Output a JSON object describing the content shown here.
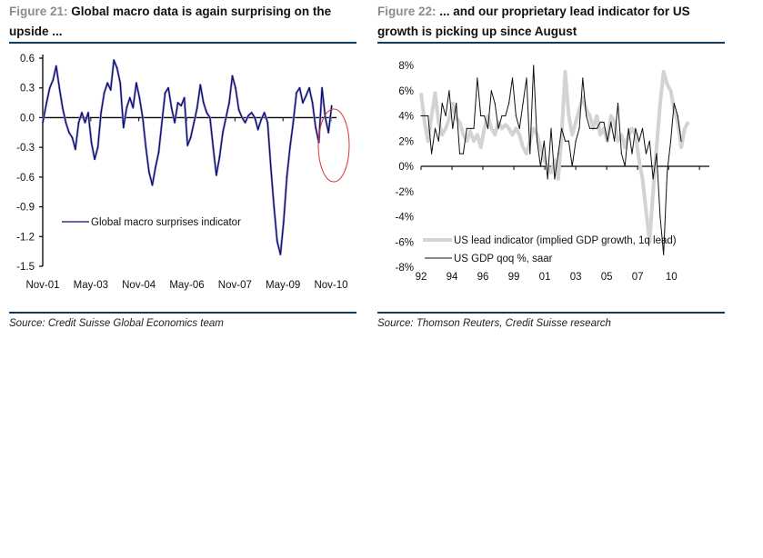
{
  "figures": [
    {
      "label": "Figure 21:",
      "title": "Global macro data is again surprising on the upside ...",
      "source": "Source: Credit Suisse Global Economics team"
    },
    {
      "label": "Figure 22:",
      "title": "... and our proprietary lead indicator for US growth is picking up since August",
      "source": "Source: Thomson Reuters, Credit Suisse research"
    }
  ],
  "colors": {
    "rule": "#123a5c",
    "macro_line": "#0a0a78",
    "macro_shade": "#a8a8c8",
    "highlight_circle": "#e03030",
    "lead_line": "#d3d3d3",
    "gdp_line": "#111111",
    "figure_label": "#8c8c8c"
  },
  "chart_data": [
    {
      "type": "line",
      "title": "Global macro data is again surprising on the upside ...",
      "xlabel": "",
      "ylabel": "",
      "ylim": [
        -1.5,
        0.6
      ],
      "yticks": [
        0.6,
        0.3,
        0.0,
        -0.3,
        -0.6,
        -0.9,
        -1.2,
        -1.5
      ],
      "ytick_labels": [
        "0.6",
        "0.3",
        "0.0",
        "-0.3",
        "-0.6",
        "-0.9",
        "-1.2",
        "-1.5"
      ],
      "xlim": [
        2001.83,
        2011.0
      ],
      "xticks": [
        2001.83,
        2003.33,
        2004.83,
        2006.33,
        2007.83,
        2009.33,
        2010.83
      ],
      "xtick_labels": [
        "Nov-01",
        "May-03",
        "Nov-04",
        "May-06",
        "Nov-07",
        "May-09",
        "Nov-10"
      ],
      "grid": false,
      "legend": {
        "placement": "center-left",
        "entries": [
          "Global macro surprises indicator"
        ]
      },
      "annotation": "red circle highlighting latest readings (late 2010)",
      "series": [
        {
          "name": "Global macro surprises indicator",
          "x": [
            2001.83,
            2001.95,
            2002.05,
            2002.15,
            2002.25,
            2002.35,
            2002.45,
            2002.55,
            2002.65,
            2002.75,
            2002.85,
            2002.95,
            2003.05,
            2003.15,
            2003.25,
            2003.35,
            2003.45,
            2003.55,
            2003.65,
            2003.75,
            2003.85,
            2003.95,
            2004.05,
            2004.15,
            2004.25,
            2004.35,
            2004.45,
            2004.55,
            2004.65,
            2004.75,
            2004.85,
            2004.95,
            2005.05,
            2005.15,
            2005.25,
            2005.35,
            2005.45,
            2005.55,
            2005.65,
            2005.75,
            2005.85,
            2005.95,
            2006.05,
            2006.15,
            2006.25,
            2006.35,
            2006.45,
            2006.55,
            2006.65,
            2006.75,
            2006.85,
            2006.95,
            2007.05,
            2007.15,
            2007.25,
            2007.35,
            2007.45,
            2007.55,
            2007.65,
            2007.75,
            2007.85,
            2007.95,
            2008.05,
            2008.15,
            2008.25,
            2008.35,
            2008.45,
            2008.55,
            2008.65,
            2008.75,
            2008.85,
            2008.95,
            2009.05,
            2009.15,
            2009.25,
            2009.35,
            2009.45,
            2009.55,
            2009.65,
            2009.75,
            2009.85,
            2009.95,
            2010.05,
            2010.15,
            2010.25,
            2010.35,
            2010.45,
            2010.55,
            2010.65,
            2010.75,
            2010.85
          ],
          "values": [
            -0.05,
            0.15,
            0.3,
            0.38,
            0.52,
            0.3,
            0.1,
            -0.05,
            -0.15,
            -0.2,
            -0.32,
            -0.05,
            0.05,
            -0.05,
            0.05,
            -0.25,
            -0.42,
            -0.3,
            0.05,
            0.25,
            0.35,
            0.28,
            0.58,
            0.5,
            0.35,
            -0.1,
            0.1,
            0.2,
            0.1,
            0.35,
            0.2,
            0.0,
            -0.3,
            -0.55,
            -0.68,
            -0.5,
            -0.35,
            -0.05,
            0.25,
            0.3,
            0.1,
            -0.05,
            0.15,
            0.12,
            0.2,
            -0.28,
            -0.2,
            -0.05,
            0.1,
            0.33,
            0.15,
            0.05,
            0.0,
            -0.3,
            -0.58,
            -0.4,
            -0.15,
            0.0,
            0.15,
            0.42,
            0.3,
            0.08,
            0.0,
            -0.05,
            0.02,
            0.05,
            0.0,
            -0.12,
            -0.02,
            0.05,
            -0.05,
            -0.5,
            -0.9,
            -1.25,
            -1.38,
            -1.05,
            -0.6,
            -0.3,
            -0.05,
            0.25,
            0.3,
            0.15,
            0.22,
            0.3,
            0.15,
            -0.1,
            -0.25,
            0.3,
            0.0,
            -0.15,
            0.12
          ]
        }
      ]
    },
    {
      "type": "line",
      "title": "... and our proprietary lead indicator for US growth is picking up since August",
      "xlabel": "",
      "ylabel": "",
      "ylim": [
        -8,
        8
      ],
      "yticks": [
        8,
        6,
        4,
        2,
        0,
        -2,
        -4,
        -6,
        -8
      ],
      "ytick_labels": [
        "8%",
        "6%",
        "4%",
        "2%",
        "0%",
        "-2%",
        "-4%",
        "-6%",
        "-8%"
      ],
      "xlim": [
        1992.0,
        2012.5
      ],
      "xtick_labels": [
        "92",
        "94",
        "96",
        "99",
        "01",
        "03",
        "05",
        "07",
        "10"
      ],
      "grid": false,
      "legend": {
        "placement": "bottom-left",
        "entries": [
          "US lead indicator (implied GDP growth, 1q lead)",
          "US GDP qoq %, saar"
        ]
      },
      "series": [
        {
          "name": "US lead indicator (implied GDP growth, 1q lead)",
          "x": [
            1992.0,
            1992.25,
            1992.5,
            1992.75,
            1993.0,
            1993.25,
            1993.5,
            1993.75,
            1994.0,
            1994.25,
            1994.5,
            1994.75,
            1995.0,
            1995.25,
            1995.5,
            1995.75,
            1996.0,
            1996.25,
            1996.5,
            1996.75,
            1997.0,
            1997.25,
            1997.5,
            1997.75,
            1998.0,
            1998.25,
            1998.5,
            1998.75,
            1999.0,
            1999.25,
            1999.5,
            1999.75,
            2000.0,
            2000.25,
            2000.5,
            2000.75,
            2001.0,
            2001.25,
            2001.5,
            2001.75,
            2002.0,
            2002.25,
            2002.5,
            2002.75,
            2003.0,
            2003.25,
            2003.5,
            2003.75,
            2004.0,
            2004.25,
            2004.5,
            2004.75,
            2005.0,
            2005.25,
            2005.5,
            2005.75,
            2006.0,
            2006.25,
            2006.5,
            2006.75,
            2007.0,
            2007.25,
            2007.5,
            2007.75,
            2008.0,
            2008.25,
            2008.5,
            2008.75,
            2009.0,
            2009.25,
            2009.5,
            2009.75,
            2010.0,
            2010.25,
            2010.5,
            2010.75,
            2011.0
          ],
          "values": [
            5.8,
            3.5,
            2.0,
            4.0,
            5.8,
            3.5,
            2.5,
            3.0,
            3.8,
            5.0,
            3.8,
            3.5,
            2.5,
            2.0,
            2.8,
            2.0,
            2.5,
            1.5,
            3.0,
            4.0,
            3.0,
            2.5,
            3.5,
            3.0,
            3.3,
            3.0,
            2.5,
            3.0,
            2.5,
            1.5,
            1.0,
            2.0,
            3.0,
            2.5,
            1.5,
            0.5,
            0.0,
            -0.5,
            0.5,
            -1.0,
            2.5,
            7.5,
            4.0,
            2.5,
            3.5,
            4.5,
            5.5,
            4.5,
            4.0,
            3.0,
            4.0,
            2.5,
            3.0,
            2.0,
            4.0,
            3.5,
            2.0,
            2.5,
            1.5,
            2.5,
            3.0,
            2.5,
            0.5,
            -1.0,
            -3.5,
            -6.0,
            -2.0,
            1.5,
            5.0,
            7.5,
            6.5,
            6.0,
            4.5,
            3.5,
            1.5,
            3.0,
            3.5
          ]
        },
        {
          "name": "US GDP qoq %, saar",
          "x": [
            1992.0,
            1992.25,
            1992.5,
            1992.75,
            1993.0,
            1993.25,
            1993.5,
            1993.75,
            1994.0,
            1994.25,
            1994.5,
            1994.75,
            1995.0,
            1995.25,
            1995.5,
            1995.75,
            1996.0,
            1996.25,
            1996.5,
            1996.75,
            1997.0,
            1997.25,
            1997.5,
            1997.75,
            1998.0,
            1998.25,
            1998.5,
            1998.75,
            1999.0,
            1999.25,
            1999.5,
            1999.75,
            2000.0,
            2000.25,
            2000.5,
            2000.75,
            2001.0,
            2001.25,
            2001.5,
            2001.75,
            2002.0,
            2002.25,
            2002.5,
            2002.75,
            2003.0,
            2003.25,
            2003.5,
            2003.75,
            2004.0,
            2004.25,
            2004.5,
            2004.75,
            2005.0,
            2005.25,
            2005.5,
            2005.75,
            2006.0,
            2006.25,
            2006.5,
            2006.75,
            2007.0,
            2007.25,
            2007.5,
            2007.75,
            2008.0,
            2008.25,
            2008.5,
            2008.75,
            2009.0,
            2009.25,
            2009.5,
            2009.75,
            2010.0,
            2010.25,
            2010.5
          ],
          "values": [
            4.0,
            4.0,
            4.0,
            1.0,
            3.0,
            2.0,
            5.0,
            4.0,
            6.0,
            3.0,
            5.0,
            1.0,
            1.0,
            3.0,
            3.0,
            3.0,
            7.0,
            4.0,
            4.0,
            3.0,
            6.0,
            5.0,
            3.0,
            4.0,
            4.0,
            5.0,
            7.0,
            4.0,
            3.0,
            5.0,
            7.0,
            1.0,
            8.0,
            2.0,
            0.0,
            2.0,
            -1.0,
            3.0,
            -1.0,
            1.0,
            3.0,
            2.0,
            2.0,
            0.0,
            2.0,
            3.0,
            7.0,
            4.0,
            3.0,
            3.0,
            3.0,
            3.5,
            3.5,
            2.0,
            3.5,
            2.0,
            5.0,
            1.0,
            0.0,
            3.0,
            1.0,
            3.0,
            2.0,
            3.0,
            1.0,
            2.0,
            -1.0,
            1.0,
            -4.0,
            -7.0,
            -0.5,
            2.0,
            5.0,
            4.0,
            2.0
          ]
        }
      ]
    }
  ]
}
